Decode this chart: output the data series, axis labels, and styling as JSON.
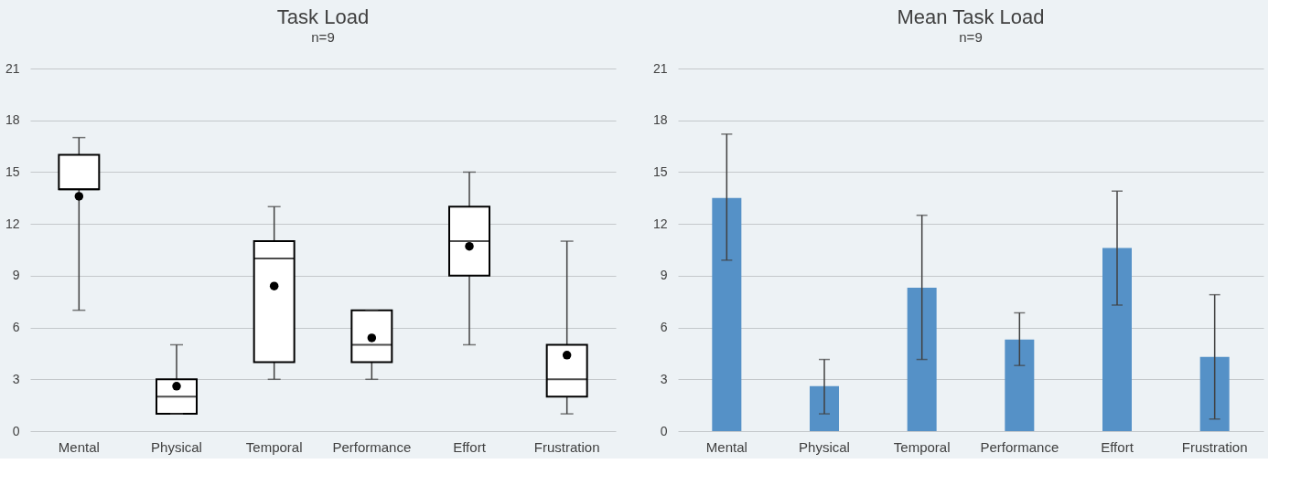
{
  "chart_data": [
    {
      "type": "box",
      "title": "Task Load",
      "subtitle": "n=9",
      "categories": [
        "Mental",
        "Physical",
        "Temporal",
        "Performance",
        "Effort",
        "Frustration"
      ],
      "boxes": [
        {
          "low": 7,
          "q1": 14,
          "median": 14,
          "q3": 16,
          "high": 17,
          "mean": 13.6
        },
        {
          "low": 1,
          "q1": 1,
          "median": 2,
          "q3": 3,
          "high": 5,
          "mean": 2.6
        },
        {
          "low": 3,
          "q1": 4,
          "median": 10,
          "q3": 11,
          "high": 13,
          "mean": 8.4
        },
        {
          "low": 3,
          "q1": 4,
          "median": 5,
          "q3": 7,
          "high": 7,
          "mean": 5.4
        },
        {
          "low": 5,
          "q1": 9,
          "median": 11,
          "q3": 13,
          "high": 15,
          "mean": 10.7
        },
        {
          "low": 1,
          "q1": 2,
          "median": 3,
          "q3": 5,
          "high": 11,
          "mean": 4.4
        }
      ],
      "ylim": [
        0,
        21
      ],
      "yticks": [
        0,
        3,
        6,
        9,
        12,
        15,
        18,
        21
      ],
      "grid": "y"
    },
    {
      "type": "bar",
      "title": "Mean Task Load",
      "subtitle": "n=9",
      "categories": [
        "Mental",
        "Physical",
        "Temporal",
        "Performance",
        "Effort",
        "Frustration"
      ],
      "values": [
        13.5,
        2.6,
        8.3,
        5.3,
        10.6,
        4.3
      ],
      "color": "#5591c7",
      "errors": [
        [
          9.9,
          17.2
        ],
        [
          1.0,
          4.15
        ],
        [
          4.15,
          12.5
        ],
        [
          3.8,
          6.85
        ],
        [
          7.3,
          13.9
        ],
        [
          0.7,
          7.9
        ]
      ],
      "ylim": [
        0,
        21
      ],
      "yticks": [
        0,
        3,
        6,
        9,
        12,
        15,
        18,
        21
      ],
      "grid": "y"
    }
  ]
}
